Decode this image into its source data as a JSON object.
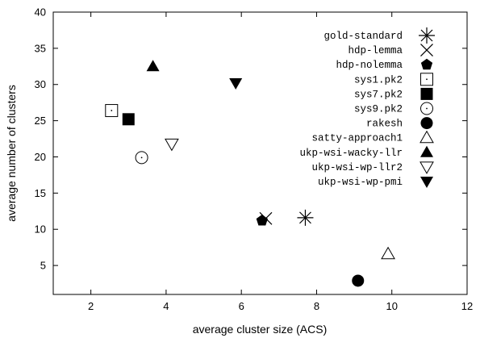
{
  "chart_data": {
    "type": "scatter",
    "xlabel": "average cluster size (ACS)",
    "ylabel": "average number of clusters",
    "xlim": [
      1,
      12
    ],
    "ylim": [
      1,
      40
    ],
    "xticks": [
      2,
      4,
      6,
      8,
      10,
      12
    ],
    "yticks": [
      5,
      10,
      15,
      20,
      25,
      30,
      35,
      40
    ],
    "grid": false,
    "legend_position": "top-right",
    "series": [
      {
        "name": "gold-standard",
        "marker": "asterisk",
        "x": 7.7,
        "y": 11.6
      },
      {
        "name": "hdp-lemma",
        "marker": "x",
        "x": 6.65,
        "y": 11.5
      },
      {
        "name": "hdp-nolemma",
        "marker": "filled-pentagon",
        "x": 6.55,
        "y": 11.2
      },
      {
        "name": "sys1.pk2",
        "marker": "dotted-square",
        "x": 2.55,
        "y": 26.4
      },
      {
        "name": "sys7.pk2",
        "marker": "filled-square",
        "x": 3.0,
        "y": 25.2
      },
      {
        "name": "sys9.pk2",
        "marker": "dotted-circle",
        "x": 3.35,
        "y": 19.9
      },
      {
        "name": "rakesh",
        "marker": "filled-circle",
        "x": 9.1,
        "y": 2.9
      },
      {
        "name": "satty-approach1",
        "marker": "open-triangle-up",
        "x": 9.9,
        "y": 6.6
      },
      {
        "name": "ukp-wsi-wacky-llr",
        "marker": "filled-triangle-up",
        "x": 3.65,
        "y": 32.5
      },
      {
        "name": "ukp-wsi-wp-llr2",
        "marker": "open-triangle-down",
        "x": 4.15,
        "y": 21.8
      },
      {
        "name": "ukp-wsi-wp-pmi",
        "marker": "filled-triangle-down",
        "x": 5.85,
        "y": 30.2
      }
    ]
  }
}
